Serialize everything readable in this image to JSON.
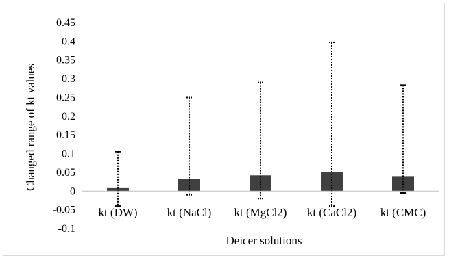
{
  "chart_data": {
    "type": "bar",
    "title": "",
    "xlabel": "Deicer solutions",
    "ylabel": "Changed range of kt values",
    "categories": [
      "kt (DW)",
      "kt (NaCl)",
      "kt (MgCl2)",
      "kt (CaCl2)",
      "kt (CMC)"
    ],
    "values": [
      0.008,
      0.033,
      0.042,
      0.05,
      0.04
    ],
    "error_range": {
      "upper": [
        0.105,
        0.25,
        0.29,
        0.397,
        0.283
      ],
      "lower": [
        -0.04,
        -0.01,
        -0.02,
        -0.04,
        -0.005
      ]
    },
    "ylim": [
      -0.1,
      0.45
    ],
    "yticks": [
      0.45,
      0.4,
      0.35,
      0.3,
      0.25,
      0.2,
      0.15,
      0.1,
      0.05,
      0,
      -0.05,
      -0.1
    ],
    "ytick_labels": [
      "0.45",
      "0.4",
      "0.35",
      "0.3",
      "0.25",
      "0.2",
      "0.15",
      "0.1",
      "0.05",
      "0",
      "-0.05",
      "-0.1"
    ],
    "grid": false,
    "legend": "none",
    "colors": {
      "bar": "#404040",
      "error": "#000000",
      "axis": "#bfbfbf",
      "border": "#d9d9d9"
    }
  }
}
